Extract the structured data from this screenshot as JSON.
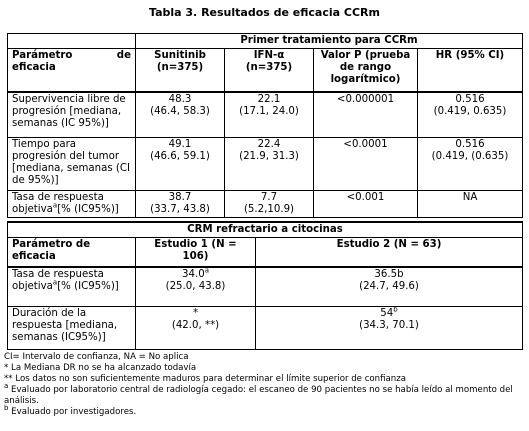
{
  "title": "Tabla 3. Resultados de eficacia CCRm",
  "section1": {
    "heading": "Primer tratamiento para CCRm",
    "columns": [
      "Parámetro de eficacia",
      "Sunitinib (n=375)",
      "IFN-α (n=375)",
      "Valor P (prueba de rango logarítmico)",
      "HR (95% CI)"
    ],
    "rows": [
      {
        "parameter": "Supervivencia libre de progresión [mediana, semanas (IC 95%)]",
        "sunitinib": [
          "48.3",
          "(46.4, 58.3)"
        ],
        "ifn": [
          "22.1",
          "(17.1, 24.0)"
        ],
        "p": "<0.000001",
        "hr": [
          "0.516",
          "(0.419, 0.635)"
        ]
      },
      {
        "parameter": "Tiempo para progresión del tumor [mediana, semanas (CI de 95%)]",
        "sunitinib": [
          "49.1",
          "(46.6, 59.1)"
        ],
        "ifn": [
          "22.4",
          "(21.9, 31.3)"
        ],
        "p": "<0.0001",
        "hr": [
          "0.516",
          "(0.419, (0.635)"
        ]
      },
      {
        "parameter": [
          "Tasa de respuesta objetiva",
          "a",
          "[% (IC95%)]"
        ],
        "sunitinib": [
          "38.7",
          "(33.7, 43.8)"
        ],
        "ifn": [
          "7.7",
          "(5.2,10.9)"
        ],
        "p": "<0.001",
        "hr": [
          "NA"
        ]
      }
    ]
  },
  "section2": {
    "heading": "CRM refractario a citocinas",
    "columns": [
      "Parámetro de eficacia",
      "Estudio 1 (N = 106)",
      "Estudio 2 (N = 63)"
    ],
    "rows": [
      {
        "parameter": [
          "Tasa de respuesta objetiva",
          "a",
          "[% (IC95%)]"
        ],
        "study1": [
          "34.0",
          "a",
          "(25.0, 43.8)"
        ],
        "study2": [
          "36.5b",
          "",
          "(24.7, 49.6)"
        ]
      },
      {
        "parameter": [
          "Duración de la respuesta [mediana, semanas (IC95%)]",
          "",
          ""
        ],
        "study1": [
          "*",
          "",
          "(42.0, **)"
        ],
        "study2": [
          "54",
          "b",
          "(34.3, 70.1)"
        ]
      }
    ]
  },
  "footnotes": [
    {
      "mark": "",
      "text": "CI= Intervalo de confianza, NA = No aplica"
    },
    {
      "mark": "",
      "text": "* La Mediana DR no se ha alcanzado todavía"
    },
    {
      "mark": "",
      "text": "** Los datos no son suficientemente maduros para determinar el límite superior de confianza"
    },
    {
      "mark": "a",
      "text": " Evaluado por laboratorio central de radiología cegado: el escaneo de 90 pacientes no se había leído al momento del análisis."
    },
    {
      "mark": "b",
      "text": " Evaluado por investigadores."
    }
  ]
}
